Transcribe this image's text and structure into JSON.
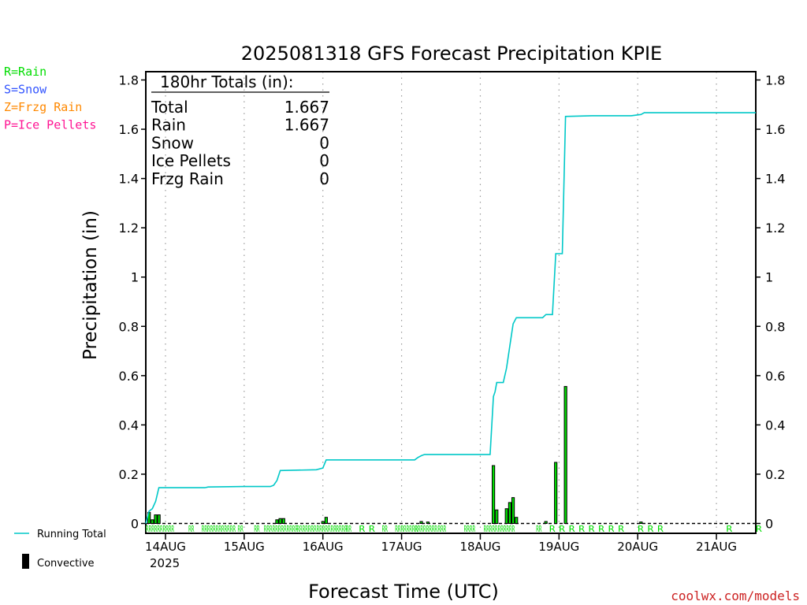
{
  "chart_data": {
    "type": "bar",
    "title": "2025081318 GFS Forecast Precipitation KPIE",
    "xlabel": "Forecast Time (UTC)",
    "ylabel": "Precipitation (in)",
    "ylim": [
      0,
      1.84
    ],
    "yticks": [
      0,
      0.2,
      0.4,
      0.6,
      0.8,
      1,
      1.2,
      1.4,
      1.6,
      1.8
    ],
    "ytick_labels": [
      "0",
      "0.2",
      "0.4",
      "0.6",
      "0.8",
      "1",
      "1.2",
      "1.4",
      "1.6",
      "1.8"
    ],
    "xlim_hours": [
      0,
      186
    ],
    "x_ticks": [
      {
        "label": "14AUG",
        "hour": 6
      },
      {
        "label": "15AUG",
        "hour": 30
      },
      {
        "label": "16AUG",
        "hour": 54
      },
      {
        "label": "17AUG",
        "hour": 78
      },
      {
        "label": "18AUG",
        "hour": 102
      },
      {
        "label": "19AUG",
        "hour": 126
      },
      {
        "label": "20AUG",
        "hour": 150
      },
      {
        "label": "21AUG",
        "hour": 174
      }
    ],
    "x_year_label": "2025",
    "precip_type_legend": [
      {
        "text": "R=Rain",
        "color": "#00dd00"
      },
      {
        "text": "S=Snow",
        "color": "#3355ff"
      },
      {
        "text": "Z=Frzg Rain",
        "color": "#ff8800"
      },
      {
        "text": "P=Ice Pellets",
        "color": "#ff1493"
      }
    ],
    "series_legend": [
      {
        "name": "Running Total",
        "color": "#00c8c8",
        "kind": "line"
      },
      {
        "name": "Convective",
        "color": "#000000",
        "kind": "bar"
      }
    ],
    "totals": {
      "heading": "180hr Totals (in):",
      "rows": [
        {
          "label": "Total",
          "value": "1.667"
        },
        {
          "label": "Rain",
          "value": "1.667"
        },
        {
          "label": "Snow",
          "value": "0"
        },
        {
          "label": "Ice Pellets",
          "value": "0"
        },
        {
          "label": "Frzg Rain",
          "value": "0"
        }
      ]
    },
    "running_total": [
      [
        0,
        0
      ],
      [
        1,
        0.05
      ],
      [
        2,
        0.06
      ],
      [
        3,
        0.09
      ],
      [
        4,
        0.145
      ],
      [
        18,
        0.145
      ],
      [
        19,
        0.148
      ],
      [
        30,
        0.15
      ],
      [
        38,
        0.15
      ],
      [
        39,
        0.155
      ],
      [
        40,
        0.175
      ],
      [
        41,
        0.215
      ],
      [
        52,
        0.218
      ],
      [
        54,
        0.225
      ],
      [
        55,
        0.258
      ],
      [
        64,
        0.258
      ],
      [
        82,
        0.258
      ],
      [
        83,
        0.268
      ],
      [
        84,
        0.275
      ],
      [
        85,
        0.28
      ],
      [
        105,
        0.28
      ],
      [
        106,
        0.515
      ],
      [
        106.5,
        0.535
      ],
      [
        107,
        0.572
      ],
      [
        109,
        0.572
      ],
      [
        110,
        0.63
      ],
      [
        111,
        0.72
      ],
      [
        112,
        0.81
      ],
      [
        113,
        0.835
      ],
      [
        121,
        0.835
      ],
      [
        122,
        0.848
      ],
      [
        124,
        0.848
      ],
      [
        125,
        1.095
      ],
      [
        127,
        1.095
      ],
      [
        128,
        1.652
      ],
      [
        136,
        1.655
      ],
      [
        148,
        1.655
      ],
      [
        151,
        1.66
      ],
      [
        152,
        1.667
      ],
      [
        186,
        1.667
      ]
    ],
    "bars": [
      {
        "hour": 1,
        "value": 0.045
      },
      {
        "hour": 2,
        "value": 0.015
      },
      {
        "hour": 3,
        "value": 0.035
      },
      {
        "hour": 4,
        "value": 0.035
      },
      {
        "hour": 40,
        "value": 0.015
      },
      {
        "hour": 41,
        "value": 0.02
      },
      {
        "hour": 42,
        "value": 0.02
      },
      {
        "hour": 54,
        "value": 0.008
      },
      {
        "hour": 55,
        "value": 0.025
      },
      {
        "hour": 84,
        "value": 0.008
      },
      {
        "hour": 86,
        "value": 0.006
      },
      {
        "hour": 106,
        "value": 0.235
      },
      {
        "hour": 107,
        "value": 0.055
      },
      {
        "hour": 110,
        "value": 0.06
      },
      {
        "hour": 111,
        "value": 0.085
      },
      {
        "hour": 112,
        "value": 0.105
      },
      {
        "hour": 113,
        "value": 0.025
      },
      {
        "hour": 122,
        "value": 0.008
      },
      {
        "hour": 125,
        "value": 0.248
      },
      {
        "hour": 128,
        "value": 0.556
      },
      {
        "hour": 151,
        "value": 0.006
      }
    ],
    "precip_type_markers": [
      {
        "hour": 0,
        "text": "RRRRRRRRRR"
      },
      {
        "hour": 13,
        "text": "RR"
      },
      {
        "hour": 17,
        "text": "RRRRRRRRRRRR"
      },
      {
        "hour": 28,
        "text": "RR"
      },
      {
        "hour": 33,
        "text": "RR"
      },
      {
        "hour": 36,
        "text": "RRRRRRRRRRRR"
      },
      {
        "hour": 46,
        "text": "RRRRRRRRRRRRRR"
      },
      {
        "hour": 58,
        "text": "RRRR"
      },
      {
        "hour": 61,
        "text": "RR"
      },
      {
        "hour": 65,
        "text": "R"
      },
      {
        "hour": 68,
        "text": "R"
      },
      {
        "hour": 72,
        "text": "RR"
      },
      {
        "hour": 76,
        "text": "RRRRRRRR"
      },
      {
        "hour": 82,
        "text": "RRRRRRRR"
      },
      {
        "hour": 89,
        "text": "RRR"
      },
      {
        "hour": 97,
        "text": "RRRR"
      },
      {
        "hour": 103,
        "text": "RRRRRRRRRRR"
      },
      {
        "hour": 119,
        "text": "RR"
      },
      {
        "hour": 123,
        "text": "R"
      },
      {
        "hour": 126,
        "text": "R"
      },
      {
        "hour": 129,
        "text": "R"
      },
      {
        "hour": 132,
        "text": "R"
      },
      {
        "hour": 135,
        "text": "R"
      },
      {
        "hour": 138,
        "text": "R"
      },
      {
        "hour": 141,
        "text": "R"
      },
      {
        "hour": 144,
        "text": "R"
      },
      {
        "hour": 150,
        "text": "R"
      },
      {
        "hour": 153,
        "text": "R"
      },
      {
        "hour": 156,
        "text": "R"
      },
      {
        "hour": 177,
        "text": "R"
      },
      {
        "hour": 186,
        "text": "R"
      }
    ],
    "colors": {
      "running_total": "#00c8c8",
      "bar_fill": "#00dd00",
      "bar_edge": "#000000",
      "grid": "#999999",
      "watermark": "#cc2222"
    },
    "grid": true
  },
  "watermark": "coolwx.com/models"
}
